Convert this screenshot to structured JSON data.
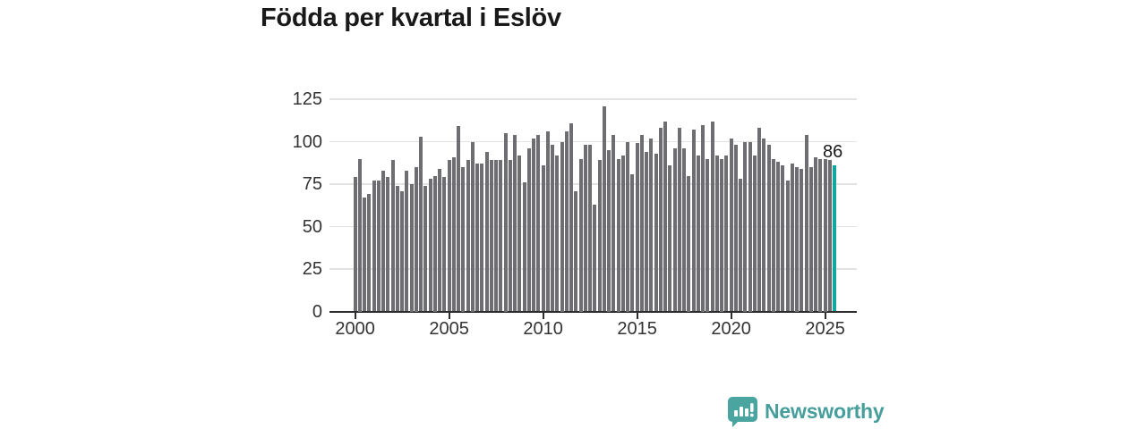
{
  "title": "Födda per kvartal i Eslöv",
  "annotation": {
    "last_value_label": "86"
  },
  "logo": {
    "text": "Newsworthy"
  },
  "colors": {
    "bar": "#6e6d72",
    "highlight": "#10a79d",
    "gridline": "#e3e3e3",
    "axis": "#2d2d2d",
    "tick_text": "#333333",
    "title_text": "#191919",
    "logo_teal": "#459e9b"
  },
  "chart_data": {
    "type": "bar",
    "title": "Födda per kvartal i Eslöv",
    "xlabel": "",
    "ylabel": "",
    "ylim": [
      0,
      130
    ],
    "grid": true,
    "y_ticks": [
      0,
      25,
      50,
      75,
      100,
      125
    ],
    "x_tick_labels": [
      "2000",
      "2005",
      "2010",
      "2015",
      "2020",
      "2025"
    ],
    "highlight_last_bar": true,
    "last_bar_label": "86",
    "categories": [
      "2000 Q1",
      "2000 Q2",
      "2000 Q3",
      "2000 Q4",
      "2001 Q1",
      "2001 Q2",
      "2001 Q3",
      "2001 Q4",
      "2002 Q1",
      "2002 Q2",
      "2002 Q3",
      "2002 Q4",
      "2003 Q1",
      "2003 Q2",
      "2003 Q3",
      "2003 Q4",
      "2004 Q1",
      "2004 Q2",
      "2004 Q3",
      "2004 Q4",
      "2005 Q1",
      "2005 Q2",
      "2005 Q3",
      "2005 Q4",
      "2006 Q1",
      "2006 Q2",
      "2006 Q3",
      "2006 Q4",
      "2007 Q1",
      "2007 Q2",
      "2007 Q3",
      "2007 Q4",
      "2008 Q1",
      "2008 Q2",
      "2008 Q3",
      "2008 Q4",
      "2009 Q1",
      "2009 Q2",
      "2009 Q3",
      "2009 Q4",
      "2010 Q1",
      "2010 Q2",
      "2010 Q3",
      "2010 Q4",
      "2011 Q1",
      "2011 Q2",
      "2011 Q3",
      "2011 Q4",
      "2012 Q1",
      "2012 Q2",
      "2012 Q3",
      "2012 Q4",
      "2013 Q1",
      "2013 Q2",
      "2013 Q3",
      "2013 Q4",
      "2014 Q1",
      "2014 Q2",
      "2014 Q3",
      "2014 Q4",
      "2015 Q1",
      "2015 Q2",
      "2015 Q3",
      "2015 Q4",
      "2016 Q1",
      "2016 Q2",
      "2016 Q3",
      "2016 Q4",
      "2017 Q1",
      "2017 Q2",
      "2017 Q3",
      "2017 Q4",
      "2018 Q1",
      "2018 Q2",
      "2018 Q3",
      "2018 Q4",
      "2019 Q1",
      "2019 Q2",
      "2019 Q3",
      "2019 Q4",
      "2020 Q1",
      "2020 Q2",
      "2020 Q3",
      "2020 Q4",
      "2021 Q1",
      "2021 Q2",
      "2021 Q3",
      "2021 Q4",
      "2022 Q1",
      "2022 Q2",
      "2022 Q3",
      "2022 Q4",
      "2023 Q1",
      "2023 Q2",
      "2023 Q3",
      "2023 Q4",
      "2024 Q1",
      "2024 Q2",
      "2024 Q3",
      "2024 Q4",
      "2025 Q1",
      "2025 Q2",
      "2025 Q3"
    ],
    "values": [
      79,
      90,
      67,
      69,
      77,
      77,
      83,
      79,
      89,
      74,
      71,
      83,
      75,
      85,
      103,
      74,
      78,
      80,
      84,
      79,
      89,
      91,
      109,
      85,
      89,
      100,
      87,
      87,
      94,
      89,
      89,
      89,
      105,
      89,
      104,
      92,
      76,
      96,
      102,
      104,
      86,
      106,
      98,
      92,
      100,
      106,
      111,
      71,
      90,
      98,
      98,
      63,
      89,
      121,
      95,
      104,
      90,
      92,
      100,
      81,
      99,
      104,
      94,
      102,
      93,
      108,
      112,
      86,
      96,
      108,
      96,
      80,
      107,
      92,
      110,
      90,
      112,
      92,
      90,
      92,
      102,
      98,
      78,
      100,
      100,
      92,
      108,
      102,
      98,
      90,
      88,
      86,
      77,
      87,
      85,
      84,
      104,
      85,
      91,
      90,
      90,
      89,
      86
    ]
  }
}
